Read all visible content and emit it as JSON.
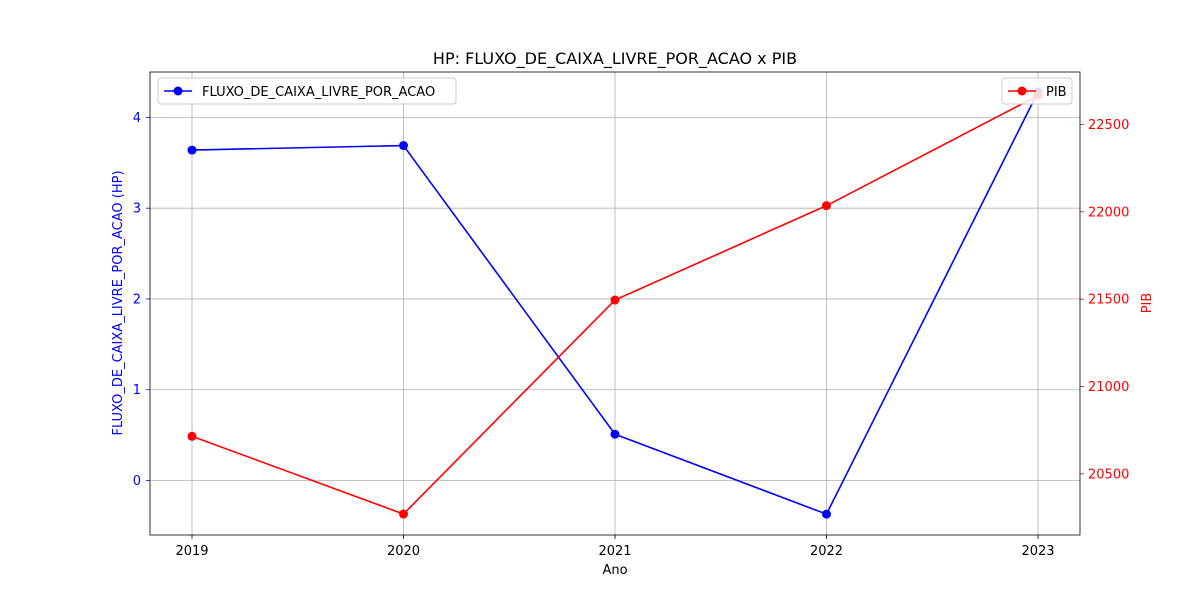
{
  "chart_data": {
    "type": "line",
    "title": "HP: FLUXO_DE_CAIXA_LIVRE_POR_ACAO x PIB",
    "xlabel": "Ano",
    "ylabel_left": "FLUXO_DE_CAIXA_LIVRE_POR_ACAO (HP)",
    "ylabel_right": "PIB",
    "x": [
      "2019",
      "2020",
      "2021",
      "2022",
      "2023"
    ],
    "left_axis": {
      "ylim": [
        -0.6,
        4.5
      ],
      "ticks": [
        0,
        1,
        2,
        3,
        4
      ],
      "color": "#0000ff"
    },
    "right_axis": {
      "ylim": [
        20150,
        22800
      ],
      "ticks": [
        20500,
        21000,
        21500,
        22000,
        22500
      ],
      "color": "#ff0000"
    },
    "series": [
      {
        "name": "FLUXO_DE_CAIXA_LIVRE_POR_ACAO",
        "axis": "left",
        "color": "#0000ff",
        "values": [
          3.64,
          3.69,
          0.51,
          -0.37,
          4.28
        ]
      },
      {
        "name": "PIB",
        "axis": "right",
        "color": "#ff0000",
        "values": [
          20715,
          20270,
          21495,
          22035,
          22665
        ]
      }
    ],
    "grid": true,
    "legends": [
      {
        "series": "FLUXO_DE_CAIXA_LIVRE_POR_ACAO",
        "placement": "upper-left"
      },
      {
        "series": "PIB",
        "placement": "upper-right"
      }
    ]
  }
}
